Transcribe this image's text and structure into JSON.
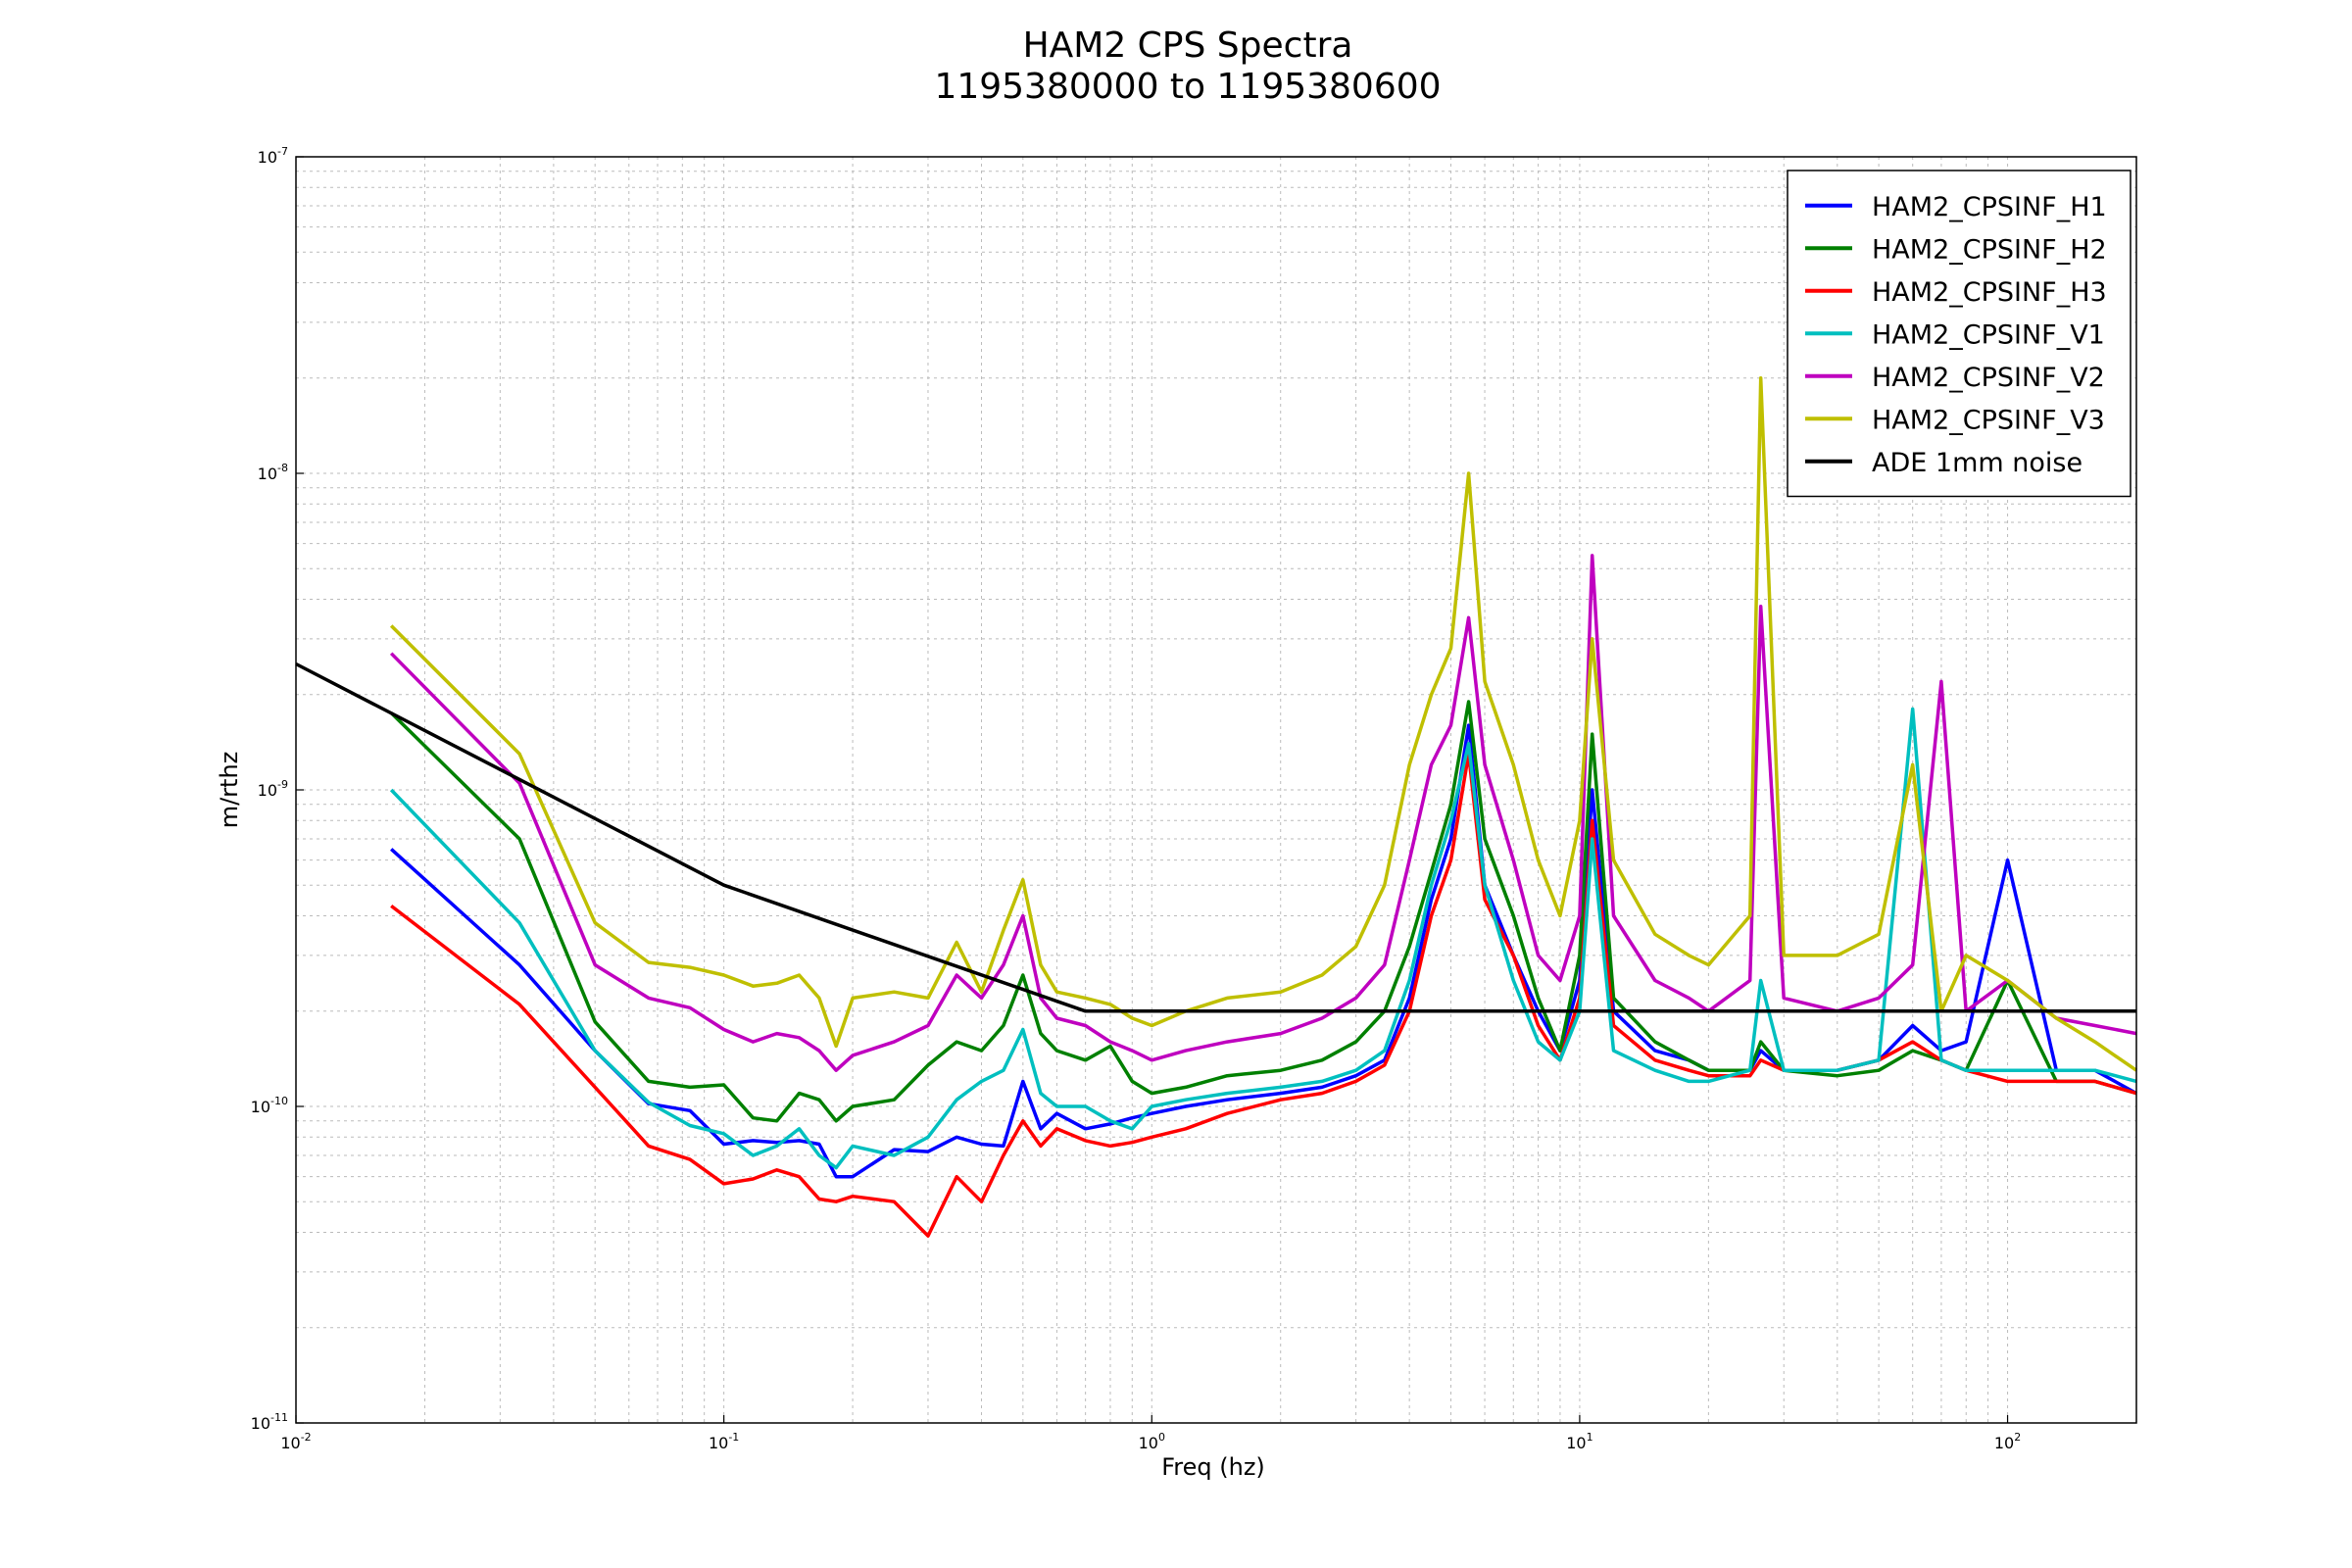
{
  "chart_data": {
    "type": "line",
    "title": "HAM2 CPS Spectra",
    "subtitle": "1195380000 to 1195380600",
    "xlabel": "Freq (hz)",
    "ylabel": "m/rthz",
    "x_scale": "log",
    "y_scale": "log",
    "xlim": [
      0.01,
      200
    ],
    "ylim": [
      1e-11,
      1e-07
    ],
    "x_ticks": [
      {
        "base": "10",
        "exp": "-2",
        "value": 0.01
      },
      {
        "base": "10",
        "exp": "-1",
        "value": 0.1
      },
      {
        "base": "10",
        "exp": "0",
        "value": 1
      },
      {
        "base": "10",
        "exp": "1",
        "value": 10
      },
      {
        "base": "10",
        "exp": "2",
        "value": 100
      }
    ],
    "y_ticks": [
      {
        "base": "10",
        "exp": "-11",
        "value": 1e-11
      },
      {
        "base": "10",
        "exp": "-10",
        "value": 1e-10
      },
      {
        "base": "10",
        "exp": "-9",
        "value": 1e-09
      },
      {
        "base": "10",
        "exp": "-8",
        "value": 1e-08
      },
      {
        "base": "10",
        "exp": "-7",
        "value": 1e-07
      }
    ],
    "grid": true,
    "legend_position": "top-right",
    "series": [
      {
        "name": "HAM2_CPSINF_H1",
        "color": "#0000ff",
        "x": [
          0.0167,
          0.0333,
          0.05,
          0.0667,
          0.0833,
          0.1,
          0.117,
          0.133,
          0.15,
          0.167,
          0.183,
          0.2,
          0.25,
          0.3,
          0.35,
          0.4,
          0.45,
          0.5,
          0.55,
          0.6,
          0.7,
          0.8,
          0.9,
          1.0,
          1.2,
          1.5,
          2.0,
          2.5,
          3.0,
          3.5,
          4.0,
          4.5,
          5.0,
          5.5,
          6.0,
          7.0,
          8.0,
          9.0,
          10.0,
          10.7,
          12.0,
          15.0,
          18.0,
          20.0,
          25.0,
          26.5,
          30.0,
          40.0,
          50.0,
          60.0,
          70.0,
          80.0,
          100.0,
          130.0,
          160.0,
          200.0
        ],
        "y": [
          6.5e-10,
          2.8e-10,
          1.5e-10,
          1.02e-10,
          9.7e-11,
          7.6e-11,
          7.8e-11,
          7.7e-11,
          7.8e-11,
          7.6e-11,
          6e-11,
          6e-11,
          7.3e-11,
          7.2e-11,
          8e-11,
          7.6e-11,
          7.5e-11,
          1.2e-10,
          8.5e-11,
          9.5e-11,
          8.5e-11,
          8.8e-11,
          9.2e-11,
          9.5e-11,
          1e-10,
          1.05e-10,
          1.1e-10,
          1.15e-10,
          1.25e-10,
          1.4e-10,
          2.2e-10,
          4.5e-10,
          7e-10,
          1.6e-09,
          5e-10,
          3e-10,
          2e-10,
          1.5e-10,
          2.5e-10,
          1e-09,
          2e-10,
          1.5e-10,
          1.4e-10,
          1.3e-10,
          1.3e-10,
          1.5e-10,
          1.3e-10,
          1.3e-10,
          1.4e-10,
          1.8e-10,
          1.5e-10,
          1.6e-10,
          6e-10,
          1.3e-10,
          1.3e-10,
          1.1e-10
        ]
      },
      {
        "name": "HAM2_CPSINF_H2",
        "color": "#008000",
        "x": [
          0.0167,
          0.0333,
          0.05,
          0.0667,
          0.0833,
          0.1,
          0.117,
          0.133,
          0.15,
          0.167,
          0.183,
          0.2,
          0.25,
          0.3,
          0.35,
          0.4,
          0.45,
          0.5,
          0.55,
          0.6,
          0.7,
          0.8,
          0.9,
          1.0,
          1.2,
          1.5,
          2.0,
          2.5,
          3.0,
          3.5,
          4.0,
          4.5,
          5.0,
          5.5,
          6.0,
          7.0,
          8.0,
          9.0,
          10.0,
          10.7,
          12.0,
          15.0,
          18.0,
          20.0,
          25.0,
          26.5,
          30.0,
          40.0,
          50.0,
          60.0,
          70.0,
          80.0,
          100.0,
          130.0,
          160.0,
          200.0
        ],
        "y": [
          1.75e-09,
          7e-10,
          1.85e-10,
          1.2e-10,
          1.15e-10,
          1.17e-10,
          9.2e-11,
          9e-11,
          1.1e-10,
          1.05e-10,
          9e-11,
          1e-10,
          1.05e-10,
          1.35e-10,
          1.6e-10,
          1.5e-10,
          1.8e-10,
          2.6e-10,
          1.7e-10,
          1.5e-10,
          1.4e-10,
          1.55e-10,
          1.2e-10,
          1.1e-10,
          1.15e-10,
          1.25e-10,
          1.3e-10,
          1.4e-10,
          1.6e-10,
          2e-10,
          3.2e-10,
          5.5e-10,
          9e-10,
          1.9e-09,
          7e-10,
          4e-10,
          2.2e-10,
          1.5e-10,
          3e-10,
          1.5e-09,
          2.2e-10,
          1.6e-10,
          1.4e-10,
          1.3e-10,
          1.3e-10,
          1.6e-10,
          1.3e-10,
          1.25e-10,
          1.3e-10,
          1.5e-10,
          1.4e-10,
          1.3e-10,
          2.5e-10,
          1.2e-10,
          1.2e-10,
          1.1e-10
        ]
      },
      {
        "name": "HAM2_CPSINF_H3",
        "color": "#ff0000",
        "x": [
          0.0167,
          0.0333,
          0.05,
          0.0667,
          0.0833,
          0.1,
          0.117,
          0.133,
          0.15,
          0.167,
          0.183,
          0.2,
          0.25,
          0.3,
          0.35,
          0.4,
          0.45,
          0.5,
          0.55,
          0.6,
          0.7,
          0.8,
          0.9,
          1.0,
          1.2,
          1.5,
          2.0,
          2.5,
          3.0,
          3.5,
          4.0,
          4.5,
          5.0,
          5.5,
          6.0,
          7.0,
          8.0,
          9.0,
          10.0,
          10.7,
          12.0,
          15.0,
          18.0,
          20.0,
          25.0,
          26.5,
          30.0,
          40.0,
          50.0,
          60.0,
          70.0,
          80.0,
          100.0,
          130.0,
          160.0,
          200.0
        ],
        "y": [
          4.3e-10,
          2.1e-10,
          1.15e-10,
          7.5e-11,
          6.8e-11,
          5.7e-11,
          5.9e-11,
          6.3e-11,
          6e-11,
          5.1e-11,
          5e-11,
          5.2e-11,
          5e-11,
          3.9e-11,
          6e-11,
          5e-11,
          7e-11,
          9e-11,
          7.5e-11,
          8.5e-11,
          7.8e-11,
          7.5e-11,
          7.7e-11,
          8e-11,
          8.5e-11,
          9.5e-11,
          1.05e-10,
          1.1e-10,
          1.2e-10,
          1.35e-10,
          2e-10,
          4e-10,
          6e-10,
          1.3e-09,
          4.5e-10,
          3e-10,
          1.8e-10,
          1.4e-10,
          2.2e-10,
          8e-10,
          1.8e-10,
          1.4e-10,
          1.3e-10,
          1.25e-10,
          1.25e-10,
          1.4e-10,
          1.3e-10,
          1.3e-10,
          1.4e-10,
          1.6e-10,
          1.4e-10,
          1.3e-10,
          1.2e-10,
          1.2e-10,
          1.2e-10,
          1.1e-10
        ]
      },
      {
        "name": "HAM2_CPSINF_V1",
        "color": "#00bfbf",
        "x": [
          0.0167,
          0.0333,
          0.05,
          0.0667,
          0.0833,
          0.1,
          0.117,
          0.133,
          0.15,
          0.167,
          0.183,
          0.2,
          0.25,
          0.3,
          0.35,
          0.4,
          0.45,
          0.5,
          0.55,
          0.6,
          0.7,
          0.8,
          0.9,
          1.0,
          1.2,
          1.5,
          2.0,
          2.5,
          3.0,
          3.5,
          4.0,
          4.5,
          5.0,
          5.5,
          6.0,
          7.0,
          8.0,
          9.0,
          10.0,
          10.7,
          12.0,
          15.0,
          18.0,
          20.0,
          25.0,
          26.5,
          30.0,
          40.0,
          50.0,
          60.0,
          70.0,
          80.0,
          100.0,
          130.0,
          160.0,
          200.0
        ],
        "y": [
          1e-09,
          3.8e-10,
          1.5e-10,
          1.03e-10,
          8.7e-11,
          8.2e-11,
          7e-11,
          7.5e-11,
          8.5e-11,
          7e-11,
          6.4e-11,
          7.5e-11,
          7e-11,
          8e-11,
          1.05e-10,
          1.2e-10,
          1.3e-10,
          1.75e-10,
          1.1e-10,
          1e-10,
          1e-10,
          9e-11,
          8.5e-11,
          1e-10,
          1.05e-10,
          1.1e-10,
          1.15e-10,
          1.2e-10,
          1.3e-10,
          1.5e-10,
          2.5e-10,
          5e-10,
          8e-10,
          1.4e-09,
          5e-10,
          2.5e-10,
          1.6e-10,
          1.4e-10,
          2e-10,
          7e-10,
          1.5e-10,
          1.3e-10,
          1.2e-10,
          1.2e-10,
          1.3e-10,
          2.5e-10,
          1.3e-10,
          1.3e-10,
          1.4e-10,
          1.8e-09,
          1.4e-10,
          1.3e-10,
          1.3e-10,
          1.3e-10,
          1.3e-10,
          1.2e-10
        ]
      },
      {
        "name": "HAM2_CPSINF_V2",
        "color": "#bf00bf",
        "x": [
          0.0167,
          0.0333,
          0.05,
          0.0667,
          0.0833,
          0.1,
          0.117,
          0.133,
          0.15,
          0.167,
          0.183,
          0.2,
          0.25,
          0.3,
          0.35,
          0.4,
          0.45,
          0.5,
          0.55,
          0.6,
          0.7,
          0.8,
          0.9,
          1.0,
          1.2,
          1.5,
          2.0,
          2.5,
          3.0,
          3.5,
          4.0,
          4.5,
          5.0,
          5.5,
          6.0,
          7.0,
          8.0,
          9.0,
          10.0,
          10.7,
          12.0,
          15.0,
          18.0,
          20.0,
          25.0,
          26.5,
          30.0,
          40.0,
          50.0,
          60.0,
          70.0,
          80.0,
          100.0,
          130.0,
          160.0,
          200.0
        ],
        "y": [
          2.7e-09,
          1.05e-09,
          2.8e-10,
          2.2e-10,
          2.05e-10,
          1.75e-10,
          1.6e-10,
          1.7e-10,
          1.65e-10,
          1.5e-10,
          1.3e-10,
          1.45e-10,
          1.6e-10,
          1.8e-10,
          2.6e-10,
          2.2e-10,
          2.8e-10,
          4e-10,
          2.2e-10,
          1.9e-10,
          1.8e-10,
          1.6e-10,
          1.5e-10,
          1.4e-10,
          1.5e-10,
          1.6e-10,
          1.7e-10,
          1.9e-10,
          2.2e-10,
          2.8e-10,
          6e-10,
          1.2e-09,
          1.6e-09,
          3.5e-09,
          1.2e-09,
          6e-10,
          3e-10,
          2.5e-10,
          4e-10,
          5.5e-09,
          4e-10,
          2.5e-10,
          2.2e-10,
          2e-10,
          2.5e-10,
          3.8e-09,
          2.2e-10,
          2e-10,
          2.2e-10,
          2.8e-10,
          2.2e-09,
          2e-10,
          2.5e-10,
          1.9e-10,
          1.8e-10,
          1.7e-10
        ]
      },
      {
        "name": "HAM2_CPSINF_V3",
        "color": "#bfbf00",
        "x": [
          0.0167,
          0.0333,
          0.05,
          0.0667,
          0.0833,
          0.1,
          0.117,
          0.133,
          0.15,
          0.167,
          0.183,
          0.2,
          0.25,
          0.3,
          0.35,
          0.4,
          0.45,
          0.5,
          0.55,
          0.6,
          0.7,
          0.8,
          0.9,
          1.0,
          1.2,
          1.5,
          2.0,
          2.5,
          3.0,
          3.5,
          4.0,
          4.5,
          5.0,
          5.5,
          6.0,
          7.0,
          8.0,
          9.0,
          10.0,
          10.7,
          12.0,
          15.0,
          18.0,
          20.0,
          25.0,
          26.5,
          30.0,
          40.0,
          50.0,
          60.0,
          70.0,
          80.0,
          100.0,
          130.0,
          160.0,
          200.0
        ],
        "y": [
          3.3e-09,
          1.3e-09,
          3.8e-10,
          2.85e-10,
          2.75e-10,
          2.6e-10,
          2.4e-10,
          2.45e-10,
          2.6e-10,
          2.2e-10,
          1.55e-10,
          2.2e-10,
          2.3e-10,
          2.2e-10,
          3.3e-10,
          2.3e-10,
          3.6e-10,
          5.2e-10,
          2.8e-10,
          2.3e-10,
          2.2e-10,
          2.1e-10,
          1.9e-10,
          1.8e-10,
          2e-10,
          2.2e-10,
          2.3e-10,
          2.6e-10,
          3.2e-10,
          5e-10,
          1.2e-09,
          2e-09,
          2.8e-09,
          1e-08,
          2.2e-09,
          1.2e-09,
          6e-10,
          4e-10,
          8e-10,
          3e-09,
          6e-10,
          3.5e-10,
          3e-10,
          2.8e-10,
          4e-10,
          2e-08,
          3e-10,
          3e-10,
          3.5e-10,
          1.2e-09,
          2e-10,
          3e-10,
          2.5e-10,
          1.9e-10,
          1.6e-10,
          1.3e-10
        ]
      },
      {
        "name": "ADE 1mm noise",
        "color": "#000000",
        "x": [
          0.01,
          0.1,
          0.7,
          200.0
        ],
        "y": [
          2.5e-09,
          5e-10,
          2e-10,
          2e-10
        ]
      }
    ]
  }
}
